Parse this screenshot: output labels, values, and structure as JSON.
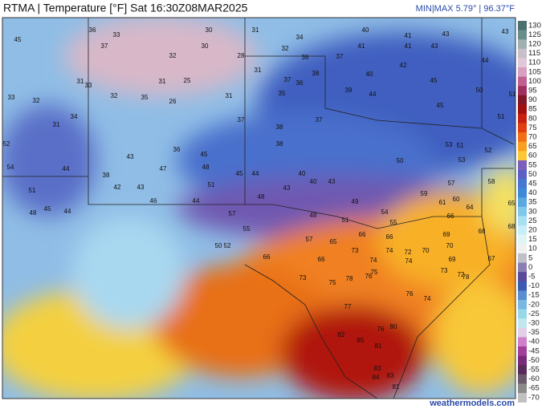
{
  "header": {
    "title": "RTMA | Temperature [°F]  Sat 16:30Z08MAR2025",
    "range": "MIN|MAX 5.79° | 96.37°F"
  },
  "footer": {
    "credit": "weathermodels.com"
  },
  "colorbar": {
    "ticks": [
      130,
      125,
      120,
      115,
      110,
      105,
      100,
      95,
      90,
      85,
      80,
      75,
      70,
      65,
      60,
      55,
      50,
      45,
      40,
      35,
      30,
      25,
      20,
      15,
      10,
      5,
      0,
      -5,
      -10,
      -15,
      -20,
      -25,
      -30,
      -35,
      -40,
      -45,
      -50,
      -55,
      -60,
      -65,
      -70
    ],
    "colors": [
      "#4a7070",
      "#6a8e8a",
      "#a0b0b0",
      "#c8c0c8",
      "#e0c8d8",
      "#d8a0c0",
      "#c06090",
      "#a03060",
      "#801828",
      "#a01010",
      "#c82010",
      "#e04010",
      "#f07018",
      "#f8a020",
      "#fcc838",
      "#7b5fb8",
      "#5a60c4",
      "#4777d0",
      "#3f8ad8",
      "#5aa8e0",
      "#80c8ea",
      "#a8e0f2",
      "#c8eef6",
      "#e0f4f4",
      "#f0f0f0",
      "#c0c0c8",
      "#8a7fb0",
      "#5a4a9a",
      "#3c5ab0",
      "#5a8ed0",
      "#7ab8e0",
      "#9ad8e8",
      "#c0e8ee",
      "#e0d0e8",
      "#d080c8",
      "#a0409a",
      "#7a2a7a",
      "#5a2a5a",
      "#6a5a6a",
      "#8a8a8a",
      "#c0c0c0"
    ]
  },
  "stations": {
    "values": [
      45,
      33,
      36,
      30,
      31,
      34,
      40,
      41,
      43,
      43,
      37,
      30,
      32,
      28,
      32,
      36,
      37,
      41,
      41,
      43,
      44,
      31,
      33,
      31,
      25,
      31,
      31,
      37,
      36,
      38,
      40,
      42,
      45,
      50,
      51,
      33,
      32,
      32,
      35,
      26,
      34,
      31,
      35,
      37,
      38,
      37,
      39,
      44,
      45,
      51,
      52,
      54,
      44,
      36,
      43,
      45,
      48,
      38,
      42,
      43,
      47,
      51,
      45,
      44,
      38,
      40,
      40,
      43,
      43,
      51,
      48,
      45,
      44,
      46,
      44,
      48,
      49,
      48,
      51,
      50,
      53,
      51,
      53,
      52,
      58,
      57,
      59,
      61,
      60,
      66,
      68,
      65,
      54,
      55,
      57,
      55,
      50,
      52,
      57,
      65,
      66,
      66,
      73,
      74,
      72,
      69,
      70,
      69,
      66,
      74,
      74,
      70,
      66,
      73,
      75,
      78,
      76,
      75,
      73,
      72,
      67,
      77,
      76,
      74,
      78,
      76,
      80,
      82,
      85,
      81,
      83,
      84,
      83,
      81,
      68,
      64
    ]
  }
}
